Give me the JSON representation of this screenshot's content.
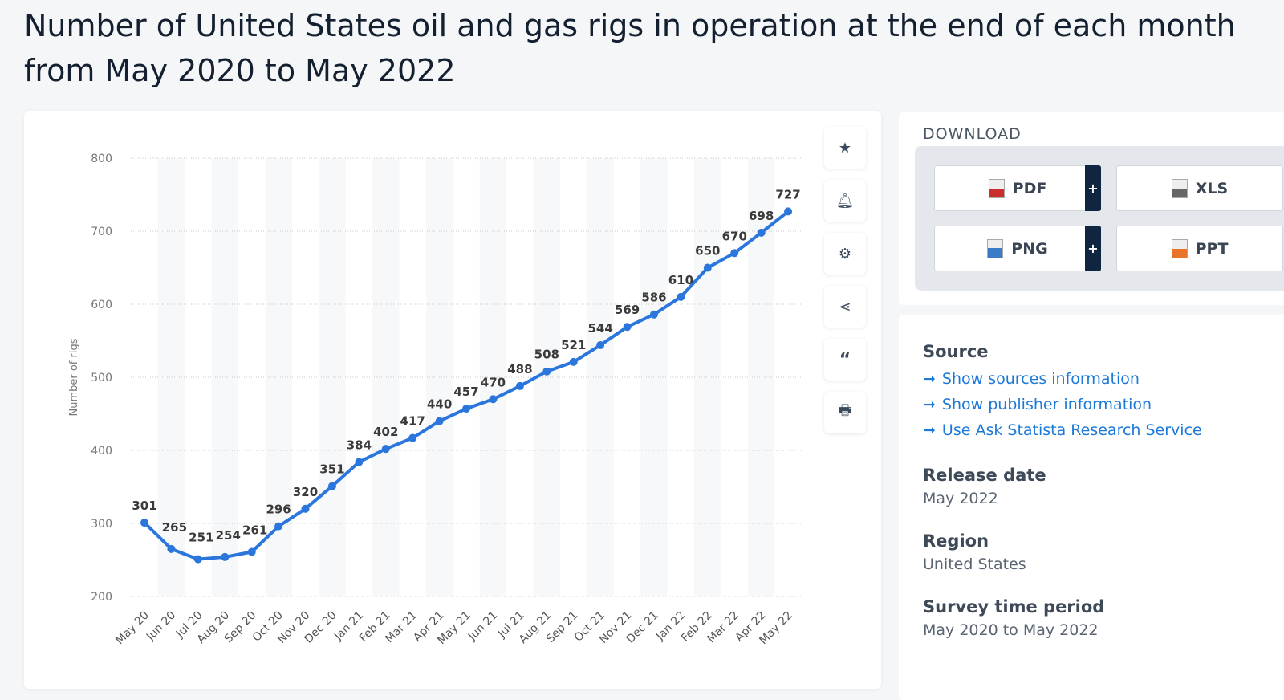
{
  "title": "Number of United States oil and gas rigs in operation at the end of each month from May 2020 to May 2022",
  "tools": [
    "star-icon",
    "bell-icon",
    "gear-icon",
    "share-icon",
    "quote-icon",
    "print-icon"
  ],
  "download": {
    "heading": "DOWNLOAD",
    "buttons": [
      {
        "label": "PDF",
        "plus": "+",
        "color": "#c9302c"
      },
      {
        "label": "XLS",
        "plus": "",
        "color": "#666666"
      },
      {
        "label": "PNG",
        "plus": "+",
        "color": "#3a7bc8"
      },
      {
        "label": "PPT",
        "plus": "",
        "color": "#e8742a"
      }
    ]
  },
  "info": {
    "source_heading": "Source",
    "links": [
      "Show sources information",
      "Show publisher information",
      "Use Ask Statista Research Service"
    ],
    "release_heading": "Release date",
    "release": "May 2022",
    "region_heading": "Region",
    "region": "United States",
    "period_heading": "Survey time period",
    "period": "May 2020 to May 2022"
  },
  "chart_data": {
    "type": "line",
    "ylabel": "Number of rigs",
    "ylim": [
      200,
      800
    ],
    "yticks": [
      200,
      300,
      400,
      500,
      600,
      700,
      800
    ],
    "grid": true,
    "color": "#2a76dd",
    "categories": [
      "May 20",
      "Jun 20",
      "Jul 20",
      "Aug 20",
      "Sep 20",
      "Oct 20",
      "Nov 20",
      "Dec 20",
      "Jan 21",
      "Feb 21",
      "Mar 21",
      "Apr 21",
      "May 21",
      "Jun 21",
      "Jul 21",
      "Aug 21",
      "Sep 21",
      "Oct 21",
      "Nov 21",
      "Dec 21",
      "Jan 22",
      "Feb 22",
      "Mar 22",
      "Apr 22",
      "May 22"
    ],
    "values": [
      301,
      265,
      251,
      254,
      261,
      296,
      320,
      351,
      384,
      402,
      417,
      440,
      457,
      470,
      488,
      508,
      521,
      544,
      569,
      586,
      610,
      650,
      670,
      698,
      727
    ]
  }
}
